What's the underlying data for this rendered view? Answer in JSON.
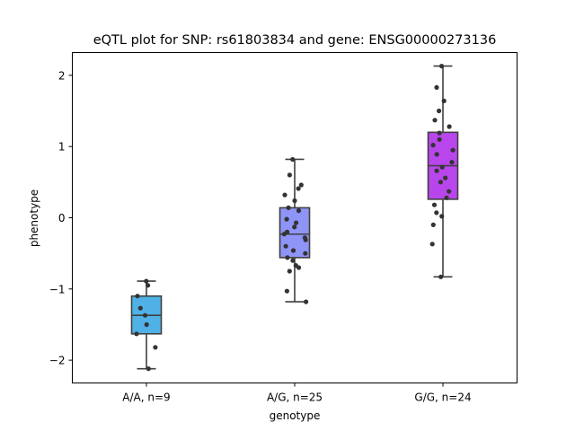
{
  "chart_data": {
    "type": "box",
    "title": "eQTL plot for SNP: rs61803834 and gene: ENSG00000273136",
    "xlabel": "genotype",
    "ylabel": "phenotype",
    "ylim": [
      -2.32,
      2.32
    ],
    "yticks": [
      {
        "value": 2,
        "label": "2"
      },
      {
        "value": 1,
        "label": "1"
      },
      {
        "value": 0,
        "label": "0"
      },
      {
        "value": -1,
        "label": "−1"
      },
      {
        "value": -2,
        "label": "−2"
      }
    ],
    "grid": false,
    "groups": [
      {
        "label": "A/A, n=9",
        "color": "#4fb1e6",
        "whisker_low": -2.12,
        "q1": -1.63,
        "median": -1.37,
        "q3": -1.1,
        "whisker_high": -0.89,
        "points": [
          -0.89,
          -0.95,
          -1.1,
          -1.27,
          -1.37,
          -1.5,
          -1.63,
          -1.82,
          -2.12
        ]
      },
      {
        "label": "A/G, n=25",
        "color": "#8f94f7",
        "whisker_low": -1.18,
        "q1": -0.56,
        "median": -0.23,
        "q3": 0.14,
        "whisker_high": 0.82,
        "points": [
          0.82,
          0.6,
          0.46,
          0.41,
          0.32,
          0.24,
          0.14,
          0.1,
          -0.02,
          -0.07,
          -0.13,
          -0.2,
          -0.23,
          -0.28,
          -0.31,
          -0.4,
          -0.46,
          -0.5,
          -0.56,
          -0.6,
          -0.67,
          -0.7,
          -0.75,
          -1.03,
          -1.18
        ]
      },
      {
        "label": "G/G, n=24",
        "color": "#b946ec",
        "whisker_low": -0.83,
        "q1": 0.26,
        "median": 0.73,
        "q3": 1.2,
        "whisker_high": 2.13,
        "points": [
          2.13,
          1.83,
          1.64,
          1.5,
          1.37,
          1.28,
          1.19,
          1.1,
          1.02,
          0.95,
          0.89,
          0.78,
          0.71,
          0.66,
          0.56,
          0.5,
          0.37,
          0.28,
          0.18,
          0.07,
          0.02,
          -0.1,
          -0.37,
          -0.83
        ]
      }
    ]
  }
}
